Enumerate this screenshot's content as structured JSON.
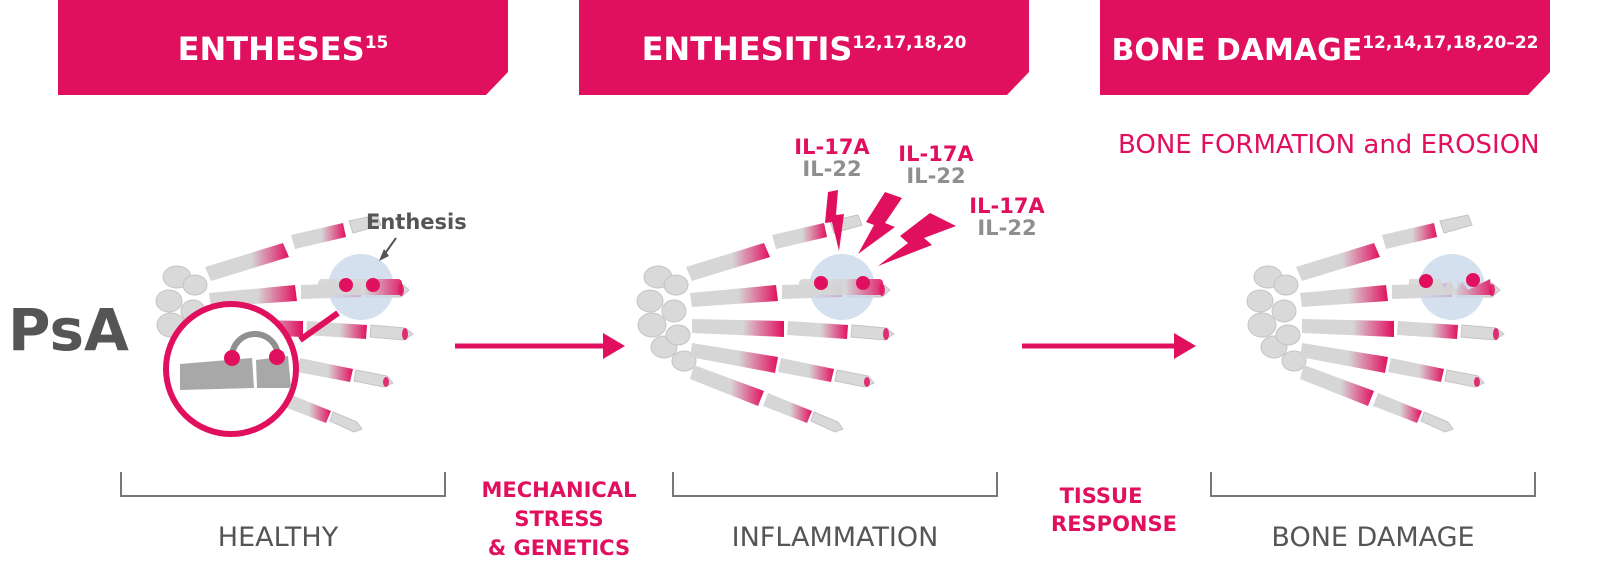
{
  "stages": [
    {
      "title": "ENTHESES",
      "refs": "15",
      "caption": "HEALTHY"
    },
    {
      "title": "ENTHESITIS",
      "refs": "12,17,18,20",
      "caption": "INFLAMMATION"
    },
    {
      "title": "BONE DAMAGE",
      "refs": "12,14,17,18,20–22",
      "caption": "BONE DAMAGE"
    }
  ],
  "disease_label": "PsA",
  "enthesis_callout": "Enthesis",
  "cytokines": [
    {
      "top": "IL-17A",
      "bottom": "IL-22"
    },
    {
      "top": "IL-17A",
      "bottom": "IL-22"
    },
    {
      "top": "IL-17A",
      "bottom": "IL-22"
    }
  ],
  "bone_effect": "BONE FORMATION and EROSION",
  "transitions": [
    {
      "lines": [
        "MECHANICAL",
        "STRESS",
        "& GENETICS"
      ]
    },
    {
      "lines": [
        "TISSUE",
        "RESPONSE"
      ]
    }
  ],
  "colors": {
    "accent": "#e1105f",
    "bone": "#d4d4d4",
    "bone_dark": "#a8a8a8",
    "label_grey": "#555555",
    "highlight": "#c9d8ea"
  }
}
